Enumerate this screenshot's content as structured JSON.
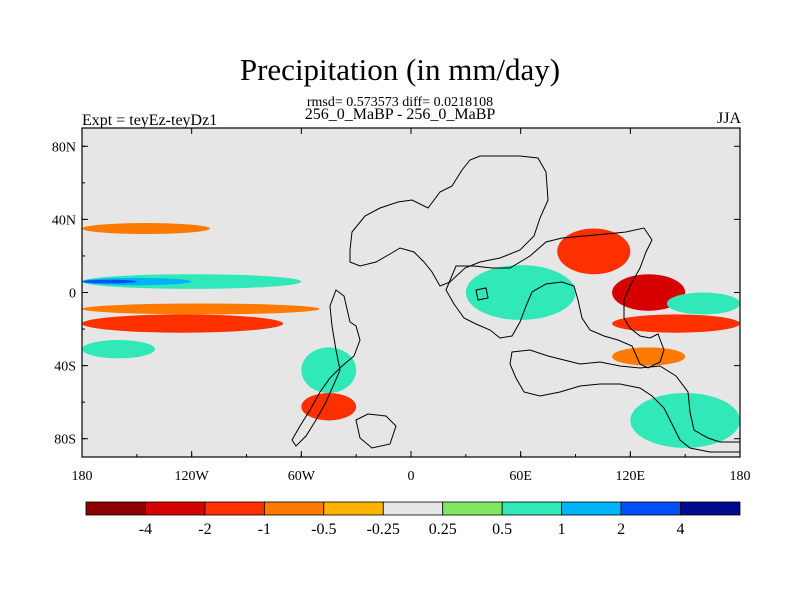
{
  "chart_data": {
    "type": "heatmap",
    "title": "Precipitation (in mm/day)",
    "stats_line": "rmsd= 0.573573 diff= 0.0218108",
    "subtitle": "256_0_MaBP - 256_0_MaBP",
    "left_label": "Expt = teyEz-teyDz1",
    "right_label": "JJA",
    "x_ticks": [
      "180",
      "120W",
      "60W",
      "0",
      "60E",
      "120E",
      "180"
    ],
    "y_ticks": [
      "80N",
      "40N",
      "0",
      "40S",
      "80S"
    ],
    "x_range": [
      -180,
      180
    ],
    "y_range": [
      -90,
      90
    ],
    "colorbar": {
      "labels": [
        "-4",
        "-2",
        "-1",
        "-0.5",
        "-0.25",
        "0.25",
        "0.5",
        "1",
        "2",
        "4"
      ],
      "colors": [
        "#8c0000",
        "#d60000",
        "#ff3000",
        "#ff7a00",
        "#ffb400",
        "#e6e6e6",
        "#80e860",
        "#30e8b8",
        "#00b4f8",
        "#0050f8",
        "#000a90"
      ]
    },
    "anomaly_bands": [
      {
        "lon": [
          -180,
          -60
        ],
        "lat": [
          2,
          10
        ],
        "level": "0.5"
      },
      {
        "lon": [
          -180,
          -120
        ],
        "lat": [
          4,
          8
        ],
        "level": "1"
      },
      {
        "lon": [
          -180,
          -150
        ],
        "lat": [
          5,
          7
        ],
        "level": "2"
      },
      {
        "lon": [
          -180,
          -50
        ],
        "lat": [
          -12,
          -6
        ],
        "level": "-0.5"
      },
      {
        "lon": [
          -180,
          -70
        ],
        "lat": [
          -22,
          -12
        ],
        "level": "-1"
      },
      {
        "lon": [
          -180,
          -140
        ],
        "lat": [
          -36,
          -26
        ],
        "level": "0.5"
      },
      {
        "lon": [
          -180,
          -110
        ],
        "lat": [
          32,
          38
        ],
        "level": "-0.5"
      },
      {
        "lon": [
          -60,
          -30
        ],
        "lat": [
          -70,
          -55
        ],
        "level": "-1"
      },
      {
        "lon": [
          -60,
          -30
        ],
        "lat": [
          -55,
          -30
        ],
        "level": "0.5"
      },
      {
        "lon": [
          30,
          90
        ],
        "lat": [
          -15,
          15
        ],
        "level": "0.5"
      },
      {
        "lon": [
          80,
          120
        ],
        "lat": [
          10,
          35
        ],
        "level": "-1"
      },
      {
        "lon": [
          110,
          150
        ],
        "lat": [
          -10,
          10
        ],
        "level": "-2"
      },
      {
        "lon": [
          110,
          180
        ],
        "lat": [
          -22,
          -12
        ],
        "level": "-1"
      },
      {
        "lon": [
          140,
          180
        ],
        "lat": [
          -12,
          0
        ],
        "level": "0.5"
      },
      {
        "lon": [
          120,
          180
        ],
        "lat": [
          -85,
          -55
        ],
        "level": "0.5"
      },
      {
        "lon": [
          110,
          150
        ],
        "lat": [
          -40,
          -30
        ],
        "level": "-0.5"
      }
    ]
  }
}
